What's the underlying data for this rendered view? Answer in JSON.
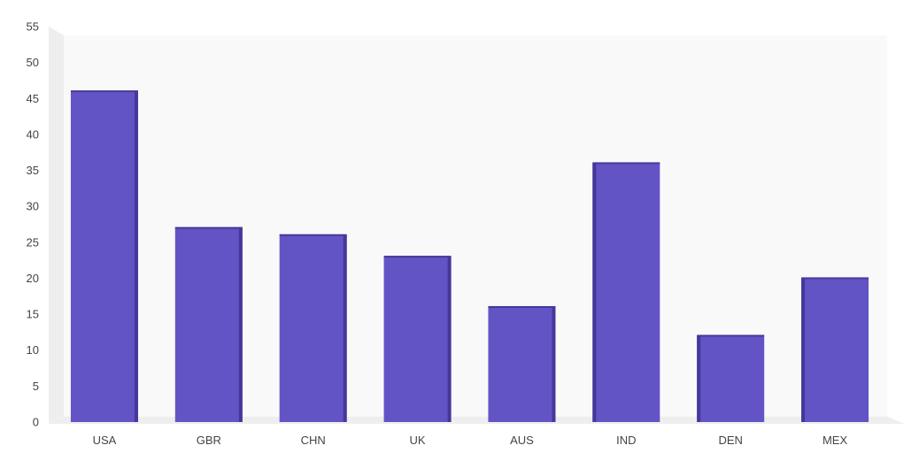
{
  "chart_data": {
    "type": "bar",
    "categories": [
      "USA",
      "GBR",
      "CHN",
      "UK",
      "AUS",
      "IND",
      "DEN",
      "MEX"
    ],
    "values": [
      46,
      27,
      26,
      23,
      16,
      36,
      12,
      20
    ],
    "ylim": [
      0,
      55
    ],
    "yticks": [
      "0",
      "5",
      "10",
      "15",
      "20",
      "25",
      "30",
      "35",
      "40",
      "45",
      "50",
      "55"
    ],
    "grid": false,
    "style": "3d",
    "colors": {
      "bar_front": "#6354c6",
      "bar_side": "#45389a",
      "bar_top": "#7868d6",
      "plot_back": "#f9f9f9",
      "plot_wall": "#eeeeee",
      "plot_floor": "#eeeeee"
    }
  }
}
